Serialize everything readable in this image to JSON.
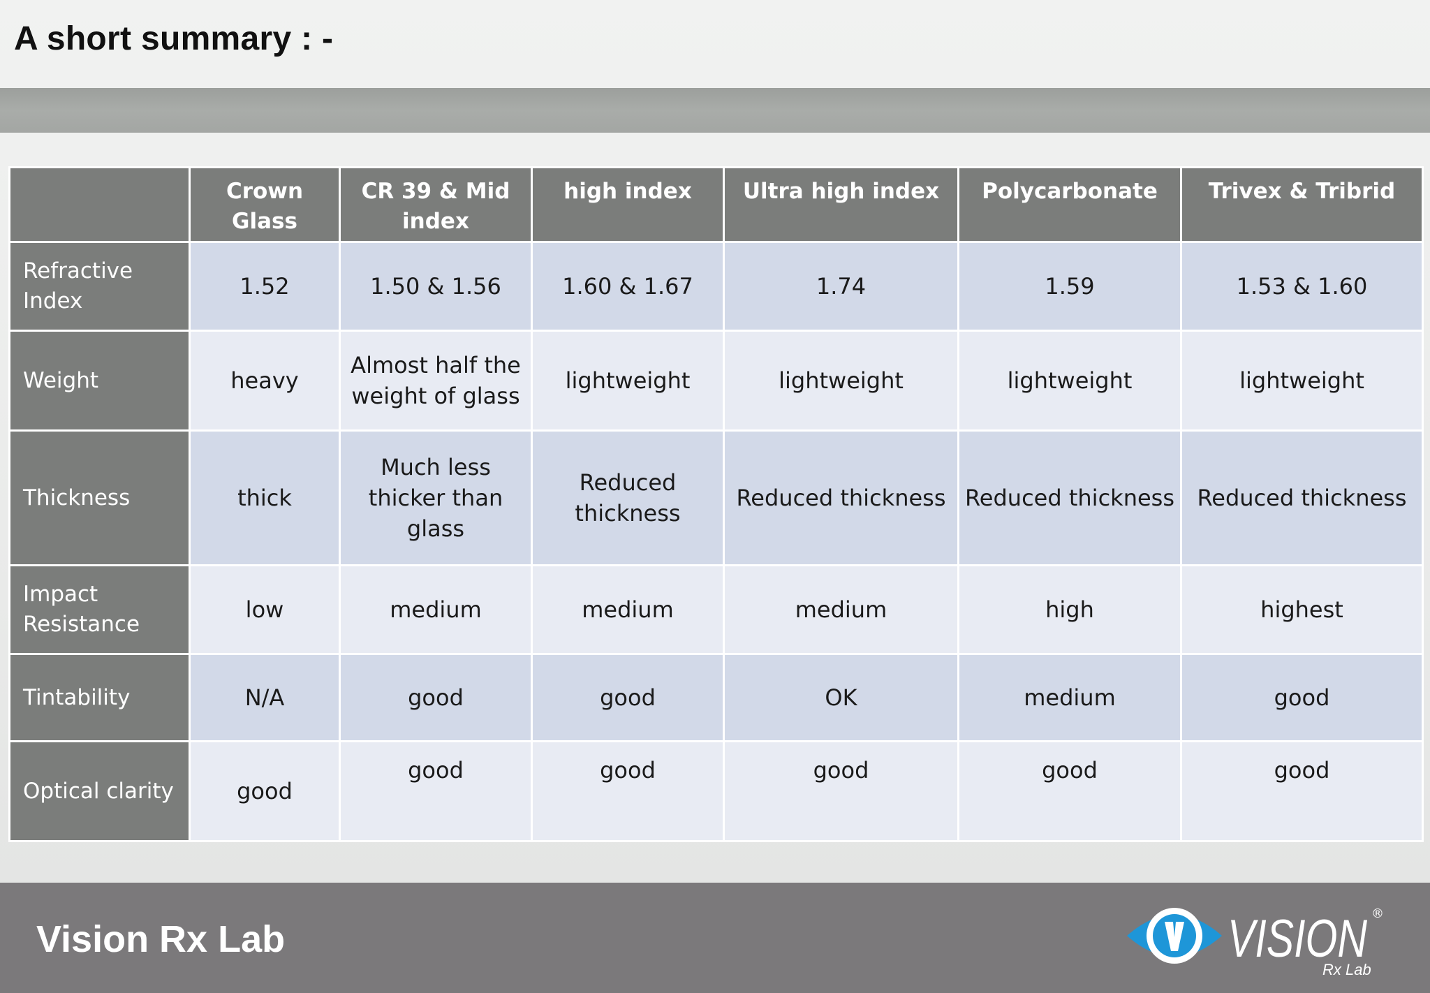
{
  "slide": {
    "title": "A short summary : -"
  },
  "table": {
    "columns": [
      "",
      "Crown Glass",
      "CR 39 & Mid index",
      "high index",
      "Ultra high index",
      "Polycarbonate",
      "Trivex & Tribrid"
    ],
    "rows": [
      {
        "label": "Refractive Index",
        "cells": [
          "1.52",
          "1.50 & 1.56",
          "1.60 & 1.67",
          "1.74",
          "1.59",
          "1.53 & 1.60"
        ]
      },
      {
        "label": "Weight",
        "cells": [
          "heavy",
          "Almost half the weight of glass",
          "lightweight",
          "lightweight",
          "lightweight",
          "lightweight"
        ]
      },
      {
        "label": "Thickness",
        "cells": [
          "thick",
          "Much less thicker than glass",
          "Reduced thickness",
          "Reduced thickness",
          "Reduced thickness",
          "Reduced thickness"
        ]
      },
      {
        "label": "Impact Resistance",
        "cells": [
          "low",
          "medium",
          "medium",
          "medium",
          "high",
          "highest"
        ]
      },
      {
        "label": "Tintability",
        "cells": [
          "N/A",
          "good",
          "good",
          "OK",
          "medium",
          "good"
        ]
      },
      {
        "label": "Optical clarity",
        "cells": [
          "good",
          "good",
          "good",
          "good",
          "good",
          "good"
        ]
      }
    ]
  },
  "footer": {
    "brand": "Vision Rx Lab",
    "logo_word": "VISION",
    "logo_sub": "Rx Lab",
    "logo_mark": "®"
  },
  "colors": {
    "header_bg": "#7b7d7b",
    "row_odd": "#d2d9e8",
    "row_even": "#e8ebf3",
    "footer_bg": "#7b797b",
    "logo_blue": "#1e96d8"
  }
}
